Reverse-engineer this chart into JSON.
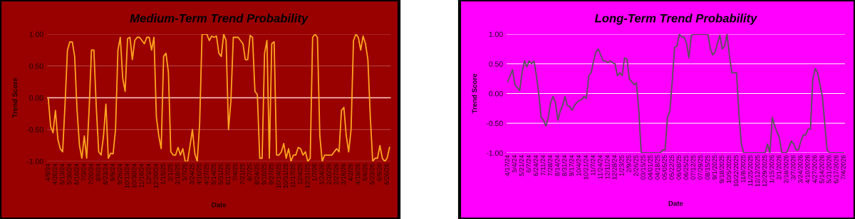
{
  "chart_data": [
    {
      "type": "line",
      "title": "Medium-Term Trend Probability",
      "xlabel": "Date",
      "ylabel": "Trend Score",
      "categories": [
        "4/9/24",
        null,
        null,
        "4/26/24",
        null,
        null,
        "5/13/24",
        null,
        null,
        "5/30/24",
        null,
        null,
        "6/16/24",
        null,
        null,
        "7/3/24",
        null,
        null,
        "7/20/24",
        null,
        null,
        "8/6/24",
        null,
        null,
        "8/23/24",
        null,
        null,
        "9/9/24",
        null,
        null,
        "9/26/24",
        null,
        null,
        "10/13/24",
        null,
        null,
        "10/30/24",
        null,
        null,
        "11/16/24",
        null,
        null,
        "12/3/24",
        null,
        null,
        "12/20/24",
        null,
        null,
        "1/15/25",
        null,
        null,
        "2/1/25",
        null,
        null,
        "2/18/25",
        null,
        null,
        "3/7/25",
        null,
        null,
        "3/24/25",
        null,
        null,
        "4/10/25",
        null,
        null,
        "4/27/25",
        null,
        null,
        "5/14/25",
        null,
        null,
        "5/31/25",
        null,
        null,
        "6/17/25",
        null,
        null,
        "7/4/25",
        null,
        null,
        "7/21/25",
        null,
        null,
        "8/7/25",
        null,
        null,
        "8/24/25",
        null,
        null,
        "9/10/25",
        null,
        null,
        "9/27/25",
        null,
        null,
        "10/14/25",
        null,
        null,
        "10/31/25",
        null,
        null,
        "11/17/25",
        null,
        null,
        "12/4/25",
        null,
        null,
        "12/21/25",
        null,
        null,
        "1/7/26",
        null,
        null,
        "1/24/26",
        null,
        null,
        "2/10/26",
        null,
        null,
        "2/27/26",
        null,
        null,
        "3/16/26",
        null,
        null,
        "4/2/26",
        null,
        null,
        "4/19/26",
        null,
        null,
        "5/6/26",
        null,
        null,
        "5/23/26",
        null,
        null,
        "6/9/26",
        null,
        null,
        "6/26/26",
        null
      ],
      "series": [
        {
          "color": "#ffa520",
          "values": [
            0.0,
            -0.45,
            -0.55,
            -0.2,
            -0.65,
            -0.8,
            -0.85,
            -0.1,
            0.75,
            0.88,
            0.88,
            0.65,
            -0.2,
            -0.75,
            -0.95,
            -0.6,
            -0.95,
            -0.2,
            0.75,
            0.75,
            -0.15,
            -0.85,
            -0.9,
            -0.6,
            -0.1,
            -0.95,
            -0.87,
            -0.88,
            -0.5,
            0.75,
            0.95,
            0.3,
            0.1,
            0.93,
            0.95,
            0.6,
            0.9,
            0.95,
            0.95,
            0.9,
            0.85,
            0.95,
            0.95,
            0.75,
            0.95,
            -0.3,
            -0.6,
            -0.8,
            0.65,
            0.7,
            0.4,
            -0.85,
            -0.9,
            -0.9,
            -0.78,
            -0.9,
            -0.8,
            -1.0,
            -1.0,
            -0.75,
            -0.5,
            -0.88,
            -1.0,
            -0.4,
            1.0,
            1.0,
            1.0,
            0.9,
            0.97,
            0.95,
            0.97,
            0.7,
            0.65,
            1.0,
            0.9,
            -0.5,
            -0.05,
            0.95,
            0.95,
            0.95,
            0.9,
            0.85,
            0.6,
            0.6,
            0.98,
            0.95,
            0.1,
            0.05,
            -0.95,
            -0.95,
            0.7,
            0.9,
            -0.95,
            0.85,
            0.88,
            -0.9,
            -0.9,
            -0.85,
            -0.72,
            -0.95,
            -0.8,
            -1.0,
            -0.9,
            -0.9,
            -0.78,
            -0.8,
            -0.9,
            -0.85,
            -1.0,
            -0.95,
            0.95,
            1.0,
            0.95,
            -0.6,
            -1.0,
            -0.9,
            -0.9,
            -0.9,
            -0.9,
            -0.85,
            -0.8,
            -0.85,
            -0.2,
            -0.15,
            -0.6,
            -0.85,
            -0.5,
            0.9,
            1.0,
            0.95,
            0.75,
            0.97,
            0.85,
            0.6,
            -0.3,
            -1.0,
            -0.95,
            -0.95,
            -0.75,
            -0.95,
            -1.0,
            -0.95,
            -0.78
          ]
        }
      ],
      "ylim": [
        -1,
        1
      ],
      "yticks": [
        {
          "value": -1,
          "label": "-1.00"
        },
        {
          "value": -0.5,
          "label": "-0.50"
        },
        {
          "value": 0,
          "label": "0.00"
        },
        {
          "value": 0.5,
          "label": "0.50"
        },
        {
          "value": 1,
          "label": "1.00"
        }
      ],
      "grid": "y",
      "ref_lines": [
        {
          "axis": "y",
          "value": 0,
          "color": "#ffd0d0"
        }
      ]
    },
    {
      "type": "line",
      "title": "Long-Term Trend Probability",
      "xlabel": "Date",
      "ylabel": "Trend Score",
      "categories": [
        "4/17/24",
        null,
        null,
        "5/4/24",
        null,
        null,
        "5/21/24",
        null,
        null,
        "6/7/24",
        null,
        null,
        "6/24/24",
        null,
        null,
        "7/11/24",
        null,
        null,
        "7/28/24",
        null,
        null,
        "8/14/24",
        null,
        null,
        "8/31/24",
        null,
        null,
        "9/17/24",
        null,
        null,
        "10/4/24",
        null,
        null,
        "10/21/24",
        null,
        null,
        "11/7/24",
        null,
        null,
        "11/24/24",
        null,
        null,
        "12/11/24",
        null,
        null,
        "12/28/24",
        null,
        null,
        "1/23/25",
        null,
        null,
        "2/9/25",
        null,
        null,
        "2/26/25",
        null,
        null,
        "03/15/25",
        null,
        null,
        "04/01/25",
        null,
        null,
        "04/18/25",
        null,
        null,
        "05/05/25",
        null,
        null,
        "05/22/25",
        null,
        null,
        "06/08/25",
        null,
        null,
        "06/25/25",
        null,
        null,
        "07/12/25",
        null,
        null,
        "07/29/25",
        null,
        null,
        "08/15/25",
        null,
        null,
        "9/1/2025",
        null,
        null,
        "9/18/2025",
        null,
        null,
        "10/5/2025",
        null,
        null,
        "10/22/2025",
        null,
        null,
        "11/8/2025",
        null,
        null,
        "11/25/2025",
        null,
        null,
        "12/12/2025",
        null,
        null,
        "12/29/2025",
        null,
        null,
        "1/15/2026",
        null,
        null,
        "2/1/2026",
        null,
        null,
        "2/18/2026",
        null,
        null,
        "3/7/2026",
        null,
        null,
        "3/24/2026",
        null,
        null,
        "4/10/2026",
        null,
        null,
        "4/27/2026",
        null,
        null,
        "5/14/2026",
        null,
        null,
        "5/31/2026",
        null,
        null,
        "6/17/2026",
        null,
        null,
        "7/4/2026"
      ],
      "series": [
        {
          "color": "#555555",
          "values": [
            0.2,
            0.3,
            0.4,
            0.15,
            0.1,
            0.05,
            0.35,
            0.55,
            0.45,
            0.55,
            0.5,
            0.55,
            0.3,
            0.0,
            -0.4,
            -0.45,
            -0.55,
            -0.4,
            -0.15,
            -0.05,
            -0.15,
            -0.45,
            -0.3,
            -0.2,
            -0.05,
            -0.2,
            -0.22,
            -0.28,
            -0.2,
            -0.15,
            -0.12,
            -0.1,
            -0.05,
            -0.08,
            0.3,
            0.35,
            0.55,
            0.7,
            0.75,
            0.65,
            0.55,
            0.55,
            0.52,
            0.55,
            0.52,
            0.5,
            0.3,
            0.35,
            0.3,
            0.6,
            0.58,
            0.25,
            0.2,
            0.15,
            0.18,
            -0.3,
            -1.0,
            -1.0,
            -1.0,
            -1.0,
            -1.0,
            -1.0,
            -1.0,
            -1.0,
            -1.0,
            -0.95,
            -0.95,
            -0.4,
            -0.3,
            0.2,
            0.78,
            0.8,
            1.0,
            0.95,
            0.95,
            0.85,
            0.6,
            0.98,
            1.0,
            1.0,
            1.0,
            1.0,
            1.0,
            1.0,
            1.0,
            0.75,
            0.65,
            0.7,
            0.85,
            0.98,
            0.75,
            0.8,
            1.0,
            0.65,
            0.35,
            0.35,
            0.35,
            -0.35,
            -0.85,
            -1.0,
            -1.0,
            -1.0,
            -1.0,
            -1.0,
            -1.0,
            -1.0,
            -1.0,
            -1.0,
            -1.0,
            -0.85,
            -1.0,
            -0.4,
            -0.55,
            -0.65,
            -0.75,
            -1.0,
            -1.0,
            -1.0,
            -0.9,
            -0.8,
            -0.85,
            -0.95,
            -0.95,
            -0.8,
            -0.7,
            -0.7,
            -0.6,
            -0.6,
            0.25,
            0.42,
            0.35,
            0.15,
            -0.05,
            -0.5,
            -0.95,
            -1.0,
            -1.0,
            -1.0,
            -1.0,
            -1.0,
            -1.0,
            -1.0
          ]
        }
      ],
      "ylim": [
        -1,
        1
      ],
      "yticks": [
        {
          "value": -1,
          "label": "-1.00"
        },
        {
          "value": -0.5,
          "label": "-0.50"
        },
        {
          "value": 0,
          "label": "0.00"
        },
        {
          "value": 0.5,
          "label": "0.50"
        },
        {
          "value": 1,
          "label": "1.00"
        }
      ],
      "grid": "y"
    }
  ]
}
